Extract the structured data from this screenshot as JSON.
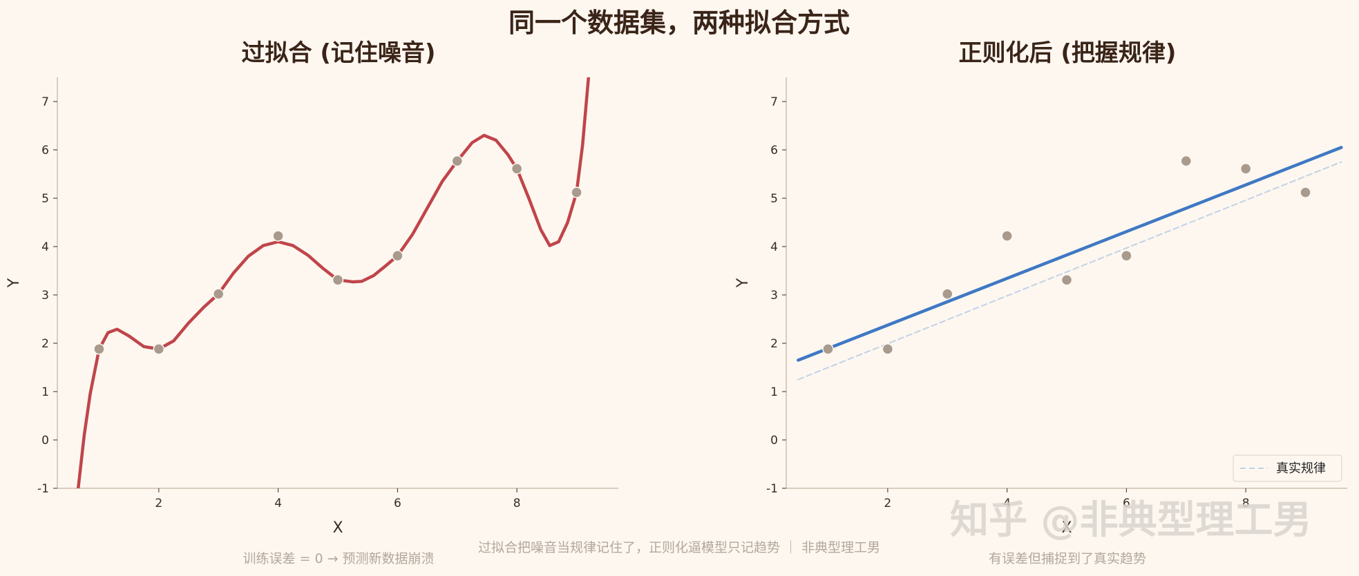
{
  "figure": {
    "suptitle": "同一个数据集，两种拟合方式",
    "caption": "过拟合把噪音当规律记住了，正则化逼模型只记趋势 ｜ 非典型理工男",
    "watermark": "知乎 @非典型理工男"
  },
  "colors": {
    "background": "#fdf7f0",
    "overfit_line": "#c0454a",
    "regularized_line": "#3f78c4",
    "true_line": "#c2d2e6",
    "points": "#a89a8c"
  },
  "chart_data": [
    {
      "type": "line",
      "title": "过拟合 (记住噪音)",
      "xlabel": "X",
      "ylabel": "Y",
      "xlim": [
        0.3,
        9.7
      ],
      "ylim": [
        -1,
        7.5
      ],
      "xticks": [
        2,
        4,
        6,
        8
      ],
      "yticks": [
        -1,
        0,
        1,
        2,
        3,
        4,
        5,
        6,
        7
      ],
      "grid": false,
      "subcaption": "训练误差 = 0 → 预测新数据崩溃",
      "points": {
        "x": [
          1,
          2,
          3,
          4,
          5,
          6,
          7,
          8,
          9
        ],
        "y": [
          1.88,
          1.88,
          3.02,
          4.22,
          3.31,
          3.81,
          5.77,
          5.61,
          5.12
        ]
      },
      "series": [
        {
          "kind": "overfit-polynomial",
          "x": [
            0.65,
            0.75,
            0.85,
            1.0,
            1.15,
            1.3,
            1.5,
            1.75,
            2.0,
            2.25,
            2.5,
            2.75,
            3.0,
            3.25,
            3.5,
            3.75,
            4.0,
            4.25,
            4.5,
            4.75,
            5.0,
            5.25,
            5.4,
            5.6,
            5.8,
            6.0,
            6.25,
            6.5,
            6.75,
            7.0,
            7.25,
            7.45,
            7.65,
            7.85,
            8.0,
            8.2,
            8.4,
            8.55,
            8.7,
            8.85,
            9.0,
            9.1,
            9.2
          ],
          "y": [
            -1.0,
            0.1,
            0.95,
            1.88,
            2.22,
            2.29,
            2.15,
            1.93,
            1.88,
            2.05,
            2.42,
            2.74,
            3.02,
            3.45,
            3.8,
            4.02,
            4.1,
            4.02,
            3.82,
            3.55,
            3.31,
            3.27,
            3.28,
            3.4,
            3.6,
            3.81,
            4.25,
            4.8,
            5.35,
            5.77,
            6.15,
            6.3,
            6.2,
            5.9,
            5.61,
            5.0,
            4.35,
            4.02,
            4.1,
            4.5,
            5.12,
            6.1,
            7.5
          ]
        }
      ]
    },
    {
      "type": "line",
      "title": "正则化后 (把握规律)",
      "xlabel": "X",
      "ylabel": "Y",
      "xlim": [
        0.3,
        9.7
      ],
      "ylim": [
        -1,
        7.5
      ],
      "xticks": [
        2,
        4,
        6,
        8
      ],
      "yticks": [
        -1,
        0,
        1,
        2,
        3,
        4,
        5,
        6,
        7
      ],
      "grid": false,
      "subcaption": "有误差但捕捉到了真实趋势",
      "legend": {
        "placement": "bottom-right"
      },
      "points": {
        "x": [
          1,
          2,
          3,
          4,
          5,
          6,
          7,
          8,
          9
        ],
        "y": [
          1.88,
          1.88,
          3.02,
          4.22,
          3.31,
          3.81,
          5.77,
          5.61,
          5.12
        ]
      },
      "series": [
        {
          "kind": "regularized-fit",
          "x": [
            0.5,
            9.6
          ],
          "y": [
            1.65,
            6.05
          ]
        },
        {
          "kind": "true-trend",
          "name": "真实规律",
          "dashed": true,
          "x": [
            0.5,
            9.6
          ],
          "y": [
            1.25,
            5.75
          ]
        }
      ]
    }
  ]
}
